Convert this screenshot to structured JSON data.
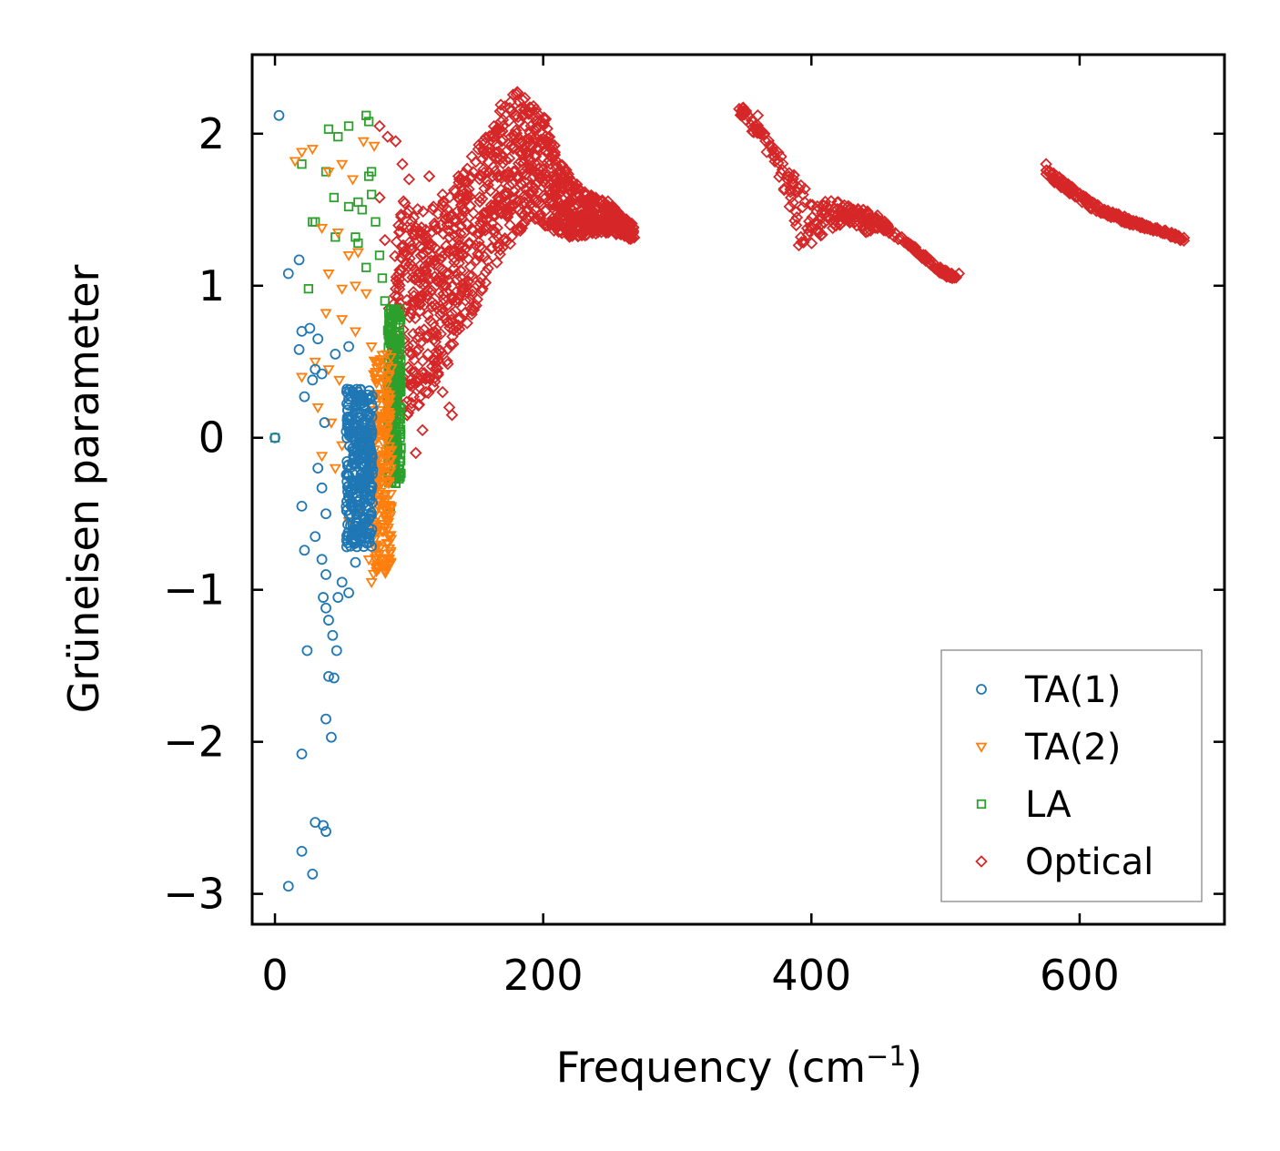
{
  "chart_data": {
    "type": "scatter",
    "title": "",
    "xlabel": "Frequency (cm",
    "xlabel_sup": "−1",
    "xlabel_close": ")",
    "ylabel": "Grüneisen parameter",
    "xlim": [
      -17,
      708
    ],
    "ylim": [
      -3.2,
      2.52
    ],
    "x_ticks": [
      0,
      200,
      400,
      600
    ],
    "x_tick_labels": [
      "0",
      "200",
      "400",
      "600"
    ],
    "y_ticks": [
      -3,
      -2,
      -1,
      0,
      1,
      2
    ],
    "y_tick_labels": [
      "−3",
      "−2",
      "−1",
      "0",
      "1",
      "2"
    ],
    "grid": false,
    "legend_position": "bottom-right",
    "series": [
      {
        "name": "TA(1)",
        "marker": "circle",
        "color": "#1f77b4",
        "points": [
          [
            3,
            2.12
          ],
          [
            10,
            1.08
          ],
          [
            18,
            1.17
          ],
          [
            20,
            0.7
          ],
          [
            26,
            0.72
          ],
          [
            18,
            0.58
          ],
          [
            32,
            0.65
          ],
          [
            28,
            0.38
          ],
          [
            22,
            0.27
          ],
          [
            30,
            0.45
          ],
          [
            35,
            0.42
          ],
          [
            37,
            0.1
          ],
          [
            32,
            -0.2
          ],
          [
            35,
            -0.33
          ],
          [
            38,
            -0.5
          ],
          [
            20,
            -0.45
          ],
          [
            22,
            -0.74
          ],
          [
            30,
            -0.65
          ],
          [
            35,
            -0.8
          ],
          [
            38,
            -0.9
          ],
          [
            36,
            -1.05
          ],
          [
            38,
            -1.12
          ],
          [
            40,
            -1.2
          ],
          [
            43,
            -1.3
          ],
          [
            46,
            -1.4
          ],
          [
            24,
            -1.4
          ],
          [
            40,
            -1.57
          ],
          [
            44,
            -1.58
          ],
          [
            38,
            -1.85
          ],
          [
            42,
            -1.97
          ],
          [
            20,
            -2.08
          ],
          [
            30,
            -2.53
          ],
          [
            36,
            -2.55
          ],
          [
            38,
            -2.59
          ],
          [
            20,
            -2.72
          ],
          [
            28,
            -2.87
          ],
          [
            10,
            -2.95
          ],
          [
            0,
            0
          ],
          [
            45,
            0.55
          ],
          [
            55,
            0.6
          ],
          [
            62,
            0.3
          ],
          [
            68,
            0.18
          ],
          [
            50,
            -0.95
          ],
          [
            55,
            -1.02
          ],
          [
            47,
            -1.05
          ],
          [
            60,
            -0.82
          ]
        ],
        "cloud": {
          "x_center": 63,
          "x_spread": 10,
          "y_min": -0.72,
          "y_max": 0.32,
          "count": 320
        }
      },
      {
        "name": "TA(2)",
        "marker": "triangle-down",
        "color": "#ff7f0e",
        "points": [
          [
            15,
            1.82
          ],
          [
            20,
            1.88
          ],
          [
            28,
            1.9
          ],
          [
            40,
            1.75
          ],
          [
            50,
            1.8
          ],
          [
            58,
            1.7
          ],
          [
            35,
            1.38
          ],
          [
            47,
            1.35
          ],
          [
            55,
            1.2
          ],
          [
            62,
            1.22
          ],
          [
            40,
            1.08
          ],
          [
            50,
            0.98
          ],
          [
            60,
            1.0
          ],
          [
            68,
            0.95
          ],
          [
            38,
            0.82
          ],
          [
            50,
            0.78
          ],
          [
            60,
            0.7
          ],
          [
            72,
            0.6
          ],
          [
            30,
            0.5
          ],
          [
            40,
            0.45
          ],
          [
            48,
            0.38
          ],
          [
            58,
            0.3
          ],
          [
            32,
            0.2
          ],
          [
            42,
            0.1
          ],
          [
            50,
            -0.05
          ],
          [
            20,
            0.4
          ],
          [
            35,
            -0.12
          ],
          [
            45,
            -0.2
          ],
          [
            70,
            -0.8
          ],
          [
            72,
            -0.95
          ],
          [
            75,
            -0.85
          ],
          [
            62,
            -0.5
          ],
          [
            55,
            -0.55
          ],
          [
            66,
            1.95
          ],
          [
            74,
            1.92
          ]
        ],
        "cloud": {
          "x_center": 80,
          "x_spread": 7,
          "y_min": -0.9,
          "y_max": 0.55,
          "count": 220
        }
      },
      {
        "name": "LA",
        "marker": "square",
        "color": "#2ca02c",
        "points": [
          [
            0,
            0
          ],
          [
            20,
            1.8
          ],
          [
            30,
            1.42
          ],
          [
            38,
            1.75
          ],
          [
            40,
            2.03
          ],
          [
            47,
            1.98
          ],
          [
            55,
            2.05
          ],
          [
            68,
            2.12
          ],
          [
            70,
            2.08
          ],
          [
            44,
            1.58
          ],
          [
            55,
            1.52
          ],
          [
            62,
            1.55
          ],
          [
            45,
            1.32
          ],
          [
            60,
            1.32
          ],
          [
            25,
            0.98
          ],
          [
            28,
            1.42
          ],
          [
            65,
            1.5
          ],
          [
            70,
            1.72
          ],
          [
            72,
            1.6
          ],
          [
            75,
            1.42
          ],
          [
            78,
            1.2
          ],
          [
            80,
            1.05
          ],
          [
            82,
            0.9
          ],
          [
            85,
            0.75
          ],
          [
            68,
            1.12
          ],
          [
            62,
            1.28
          ],
          [
            86,
            -0.45
          ],
          [
            90,
            -0.3
          ],
          [
            72,
            1.75
          ]
        ],
        "cloud": {
          "x_center": 89,
          "x_spread": 5,
          "y_min": -0.3,
          "y_max": 0.85,
          "count": 260
        }
      },
      {
        "name": "Optical",
        "marker": "diamond",
        "color": "#d62728",
        "points": [
          [
            78,
            2.05
          ],
          [
            84,
            1.98
          ],
          [
            90,
            1.95
          ],
          [
            95,
            1.8
          ],
          [
            100,
            1.7
          ],
          [
            115,
            1.72
          ],
          [
            125,
            1.6
          ],
          [
            130,
            1.32
          ],
          [
            135,
            1.42
          ],
          [
            140,
            1.2
          ],
          [
            105,
            -0.1
          ],
          [
            110,
            0.05
          ],
          [
            125,
            0.3
          ],
          [
            130,
            0.2
          ],
          [
            132,
            0.15
          ],
          [
            78,
            1.58
          ],
          [
            82,
            1.3
          ],
          [
            85,
            0.85
          ],
          [
            88,
            0.55
          ],
          [
            360,
            2.12
          ],
          [
            365,
            2.0
          ],
          [
            395,
            1.55
          ],
          [
            420,
            1.55
          ],
          [
            475,
            1.25
          ],
          [
            485,
            1.2
          ],
          [
            505,
            1.05
          ],
          [
            510,
            1.08
          ],
          [
            575,
            1.8
          ],
          [
            600,
            1.6
          ],
          [
            640,
            1.4
          ],
          [
            675,
            1.3
          ]
        ],
        "bands": [
          {
            "x": [
              88,
              100,
              115,
              130,
              145,
              160,
              170,
              180,
              190,
              200,
              210,
              220,
              230,
              240,
              250,
              260,
              268
            ],
            "y_low": [
              0.1,
              0.15,
              0.28,
              0.5,
              0.78,
              1.02,
              1.22,
              1.32,
              1.45,
              1.4,
              1.35,
              1.32,
              1.32,
              1.34,
              1.35,
              1.32,
              1.3
            ],
            "y_high": [
              1.6,
              1.55,
              1.5,
              1.62,
              1.85,
              2.05,
              2.22,
              2.28,
              2.22,
              2.15,
              1.88,
              1.72,
              1.62,
              1.58,
              1.55,
              1.45,
              1.4
            ],
            "count": 1200
          },
          {
            "x": [
              345,
              355,
              365,
              375,
              385,
              392,
              400,
              410,
              420,
              430,
              440,
              450,
              460,
              470,
              480,
              490,
              500,
              508
            ],
            "y_low": [
              2.14,
              2.02,
              1.9,
              1.72,
              1.45,
              1.18,
              1.25,
              1.32,
              1.38,
              1.42,
              1.35,
              1.38,
              1.33,
              1.28,
              1.2,
              1.12,
              1.06,
              1.05
            ],
            "y_high": [
              2.22,
              2.12,
              2.0,
              1.88,
              1.76,
              1.68,
              1.62,
              1.58,
              1.55,
              1.52,
              1.5,
              1.46,
              1.38,
              1.3,
              1.24,
              1.16,
              1.1,
              1.08
            ],
            "count": 320
          },
          {
            "x": [
              575,
              590,
              605,
              620,
              635,
              650,
              665,
              678
            ],
            "y_low": [
              1.72,
              1.62,
              1.52,
              1.46,
              1.41,
              1.37,
              1.33,
              1.29
            ],
            "y_high": [
              1.78,
              1.68,
              1.58,
              1.5,
              1.45,
              1.4,
              1.36,
              1.32
            ],
            "count": 200
          }
        ]
      }
    ]
  }
}
